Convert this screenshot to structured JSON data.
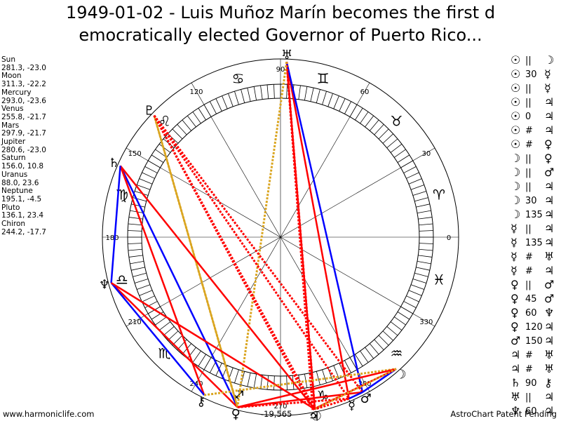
{
  "title": {
    "line1": "1949-01-02 - Luis Muñoz Marín becomes the first d",
    "line2": "emocratically elected Governor of Puerto Rico..."
  },
  "planets": [
    {
      "name": "Sun",
      "coords": "281.3, -23.0",
      "glyph": "☉",
      "lon": 281.3
    },
    {
      "name": "Moon",
      "coords": "311.3, -22.2",
      "glyph": "☽",
      "lon": 311.3
    },
    {
      "name": "Mercury",
      "coords": "293.0, -23.6",
      "glyph": "☿",
      "lon": 293.0
    },
    {
      "name": "Venus",
      "coords": "255.8, -21.7",
      "glyph": "♀",
      "lon": 255.8
    },
    {
      "name": "Mars",
      "coords": "297.9, -21.7",
      "glyph": "♂",
      "lon": 297.9
    },
    {
      "name": "Jupiter",
      "coords": "280.6, -23.0",
      "glyph": "♃",
      "lon": 280.6
    },
    {
      "name": "Saturn",
      "coords": "156.0, 10.8",
      "glyph": "♄",
      "lon": 156.0
    },
    {
      "name": "Uranus",
      "coords": "88.0, 23.6",
      "glyph": "♅",
      "lon": 88.0
    },
    {
      "name": "Neptune",
      "coords": "195.1, -4.5",
      "glyph": "♆",
      "lon": 195.1
    },
    {
      "name": "Pluto",
      "coords": "136.1, 23.4",
      "glyph": "♇",
      "lon": 136.1
    },
    {
      "name": "Chiron",
      "coords": "244.2, -17.7",
      "glyph": "⚷",
      "lon": 244.2
    }
  ],
  "angle_labels": [
    "0",
    "30",
    "60",
    "90",
    "120",
    "150",
    "180",
    "210",
    "240",
    "270",
    "300",
    "330"
  ],
  "sign_glyphs": [
    "♈",
    "♉",
    "♊",
    "♋",
    "♌",
    "♍",
    "♎",
    "♏",
    "♐",
    "♑",
    "♒",
    "♓"
  ],
  "center_label": "-19,565",
  "aspects": [
    {
      "p1": "☉",
      "aspect": "||",
      "p2": "☽"
    },
    {
      "p1": "☉",
      "aspect": "30",
      "p2": "☿"
    },
    {
      "p1": "☉",
      "aspect": "||",
      "p2": "☿"
    },
    {
      "p1": "☉",
      "aspect": "||",
      "p2": "♃"
    },
    {
      "p1": "☉",
      "aspect": "0",
      "p2": "♃"
    },
    {
      "p1": "☉",
      "aspect": "#",
      "p2": "♃"
    },
    {
      "p1": "☉",
      "aspect": "#",
      "p2": "♀"
    },
    {
      "p1": "☽",
      "aspect": "||",
      "p2": "♀"
    },
    {
      "p1": "☽",
      "aspect": "||",
      "p2": "♂"
    },
    {
      "p1": "☽",
      "aspect": "||",
      "p2": "♃"
    },
    {
      "p1": "☽",
      "aspect": "30",
      "p2": "♃"
    },
    {
      "p1": "☽",
      "aspect": "135",
      "p2": "♃"
    },
    {
      "p1": "☿",
      "aspect": "||",
      "p2": "♃"
    },
    {
      "p1": "☿",
      "aspect": "135",
      "p2": "♃"
    },
    {
      "p1": "☿",
      "aspect": "#",
      "p2": "♅"
    },
    {
      "p1": "☿",
      "aspect": "#",
      "p2": "♃"
    },
    {
      "p1": "♀",
      "aspect": "||",
      "p2": "♂"
    },
    {
      "p1": "♀",
      "aspect": "45",
      "p2": "♂"
    },
    {
      "p1": "♀",
      "aspect": "60",
      "p2": "♆"
    },
    {
      "p1": "♀",
      "aspect": "120",
      "p2": "♃"
    },
    {
      "p1": "♂",
      "aspect": "150",
      "p2": "♃"
    },
    {
      "p1": "♃",
      "aspect": "#",
      "p2": "♅"
    },
    {
      "p1": "♃",
      "aspect": "#",
      "p2": "♅"
    },
    {
      "p1": "♄",
      "aspect": "90",
      "p2": "⚷"
    },
    {
      "p1": "♅",
      "aspect": "||",
      "p2": "♃"
    },
    {
      "p1": "♆",
      "aspect": "60",
      "p2": "♃"
    }
  ],
  "footer": {
    "website": "www.harmoniclife.com",
    "credit": "AstroChart Patent Pending"
  },
  "chart_lines": [
    {
      "from": "Uranus",
      "to": "Sun",
      "color": "#ff0000",
      "style": "solid"
    },
    {
      "from": "Uranus",
      "to": "Mercury",
      "color": "#ff0000",
      "style": "solid"
    },
    {
      "from": "Uranus",
      "to": "Mars",
      "color": "#0000ff",
      "style": "solid"
    },
    {
      "from": "Uranus",
      "to": "Jupiter",
      "color": "#ff0000",
      "style": "dotted"
    },
    {
      "from": "Uranus",
      "to": "Sun",
      "color": "#ff0000",
      "style": "dotted"
    },
    {
      "from": "Uranus",
      "to": "Venus",
      "color": "#daa520",
      "style": "dotted"
    },
    {
      "from": "Venus",
      "to": "Pluto",
      "color": "#daa520",
      "style": "dotted"
    },
    {
      "from": "Venus",
      "to": "Saturn",
      "color": "#0000ff",
      "style": "solid"
    },
    {
      "from": "Venus",
      "to": "Neptune",
      "color": "#ff0000",
      "style": "solid"
    },
    {
      "from": "Pluto",
      "to": "Venus",
      "color": "#daa520",
      "style": "solid"
    },
    {
      "from": "Pluto",
      "to": "Jupiter",
      "color": "#ff0000",
      "style": "dotted"
    },
    {
      "from": "Pluto",
      "to": "Mercury",
      "color": "#ff0000",
      "style": "dotted"
    },
    {
      "from": "Pluto",
      "to": "Sun",
      "color": "#ff0000",
      "style": "dotted"
    },
    {
      "from": "Pluto",
      "to": "Mars",
      "color": "#ff0000",
      "style": "dotted"
    },
    {
      "from": "Saturn",
      "to": "Sun",
      "color": "#ff0000",
      "style": "solid"
    },
    {
      "from": "Saturn",
      "to": "Chiron",
      "color": "#ff0000",
      "style": "solid"
    },
    {
      "from": "Saturn",
      "to": "Neptune",
      "color": "#0000ff",
      "style": "solid"
    },
    {
      "from": "Neptune",
      "to": "Chiron",
      "color": "#0000ff",
      "style": "solid"
    },
    {
      "from": "Neptune",
      "to": "Sun",
      "color": "#ff0000",
      "style": "solid"
    },
    {
      "from": "Chiron",
      "to": "Moon",
      "color": "#daa520",
      "style": "dotted"
    },
    {
      "from": "Venus",
      "to": "Moon",
      "color": "#ff0000",
      "style": "solid"
    },
    {
      "from": "Venus",
      "to": "Mars",
      "color": "#ff0000",
      "style": "solid"
    },
    {
      "from": "Venus",
      "to": "Mercury",
      "color": "#ff0000",
      "style": "dotted"
    },
    {
      "from": "Moon",
      "to": "Mars",
      "color": "#0000ff",
      "style": "solid"
    },
    {
      "from": "Moon",
      "to": "Jupiter",
      "color": "#ff0000",
      "style": "solid"
    },
    {
      "from": "Moon",
      "to": "Sun",
      "color": "#daa520",
      "style": "dotted"
    },
    {
      "from": "Mercury",
      "to": "Sun",
      "color": "#ff0000",
      "style": "dotted"
    },
    {
      "from": "Mercury",
      "to": "Mars",
      "color": "#0000ff",
      "style": "solid"
    }
  ]
}
